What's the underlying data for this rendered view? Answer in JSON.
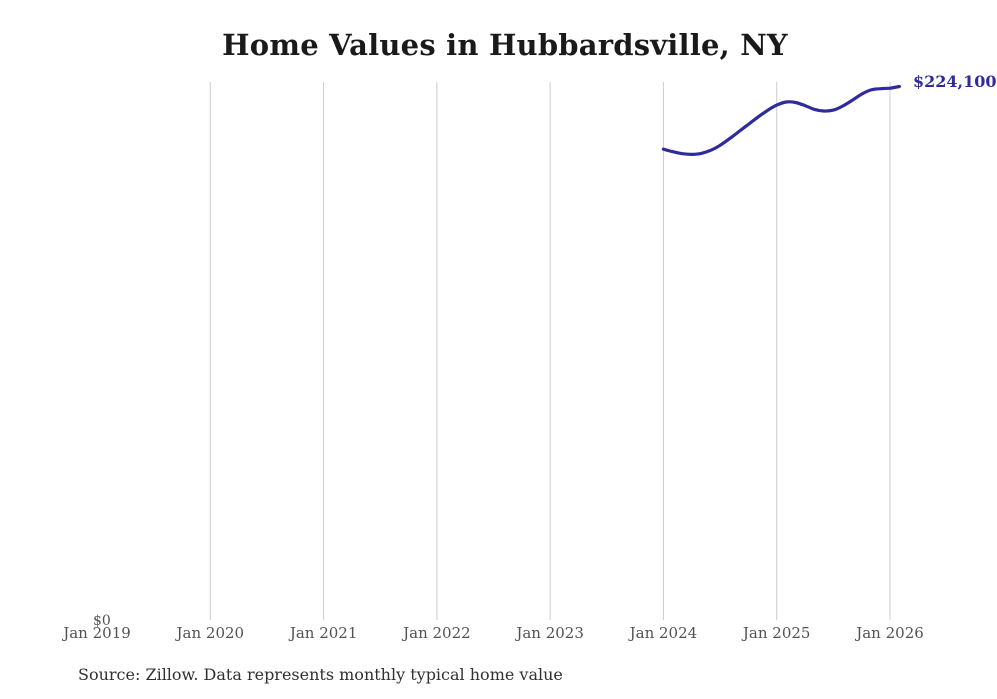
{
  "page": {
    "title_text": "Home Values in Hubbardsville, NY",
    "source_note": "Source: Zillow. Data represents monthly typical home value"
  },
  "colors": {
    "background": "#ffffff",
    "line": "#2e2b9c",
    "end_label": "#2e2b9c",
    "gridline": "#cccccc",
    "axis_text": "#525252",
    "title_text": "#1a1a1a",
    "source_text": "#303030"
  },
  "y_axis": {
    "zero_label": "$0"
  },
  "x_axis": {
    "ticks": [
      {
        "label": "Jan 2019",
        "month_index": 0,
        "gridline": false
      },
      {
        "label": "Jan 2020",
        "month_index": 12,
        "gridline": true
      },
      {
        "label": "Jan 2021",
        "month_index": 24,
        "gridline": true
      },
      {
        "label": "Jan 2022",
        "month_index": 36,
        "gridline": true
      },
      {
        "label": "Jan 2023",
        "month_index": 48,
        "gridline": true
      },
      {
        "label": "Jan 2024",
        "month_index": 60,
        "gridline": true
      },
      {
        "label": "Jan 2025",
        "month_index": 72,
        "gridline": true
      },
      {
        "label": "Jan 2026",
        "month_index": 84,
        "gridline": true
      }
    ]
  },
  "end_label": "$224,100",
  "chart_data": {
    "type": "line",
    "title": "Home Values in Hubbardsville, NY",
    "xlabel": "",
    "ylabel": "",
    "ylim": [
      0,
      226000
    ],
    "grid": "vertical-only",
    "legend": "none",
    "x_tick_labels": [
      "Jan 2019",
      "Jan 2020",
      "Jan 2021",
      "Jan 2022",
      "Jan 2023",
      "Jan 2024",
      "Jan 2025",
      "Jan 2026"
    ],
    "end_label": "$224,100",
    "series": [
      {
        "name": "Monthly typical home value",
        "x": [
          "2024-01",
          "2024-02",
          "2024-03",
          "2024-04",
          "2024-05",
          "2024-06",
          "2024-07",
          "2024-08",
          "2024-09",
          "2024-10",
          "2024-11",
          "2024-12",
          "2025-01",
          "2025-02",
          "2025-03",
          "2025-04",
          "2025-05",
          "2025-06",
          "2025-07",
          "2025-08",
          "2025-09",
          "2025-10",
          "2025-11",
          "2025-12",
          "2026-01",
          "2026-02"
        ],
        "values": [
          197800,
          196700,
          195900,
          195600,
          196000,
          197300,
          199400,
          202200,
          205200,
          208200,
          211200,
          214000,
          216300,
          217600,
          217400,
          216100,
          214500,
          213800,
          214200,
          215900,
          218300,
          220900,
          222700,
          223200,
          223400,
          224100
        ]
      }
    ]
  }
}
